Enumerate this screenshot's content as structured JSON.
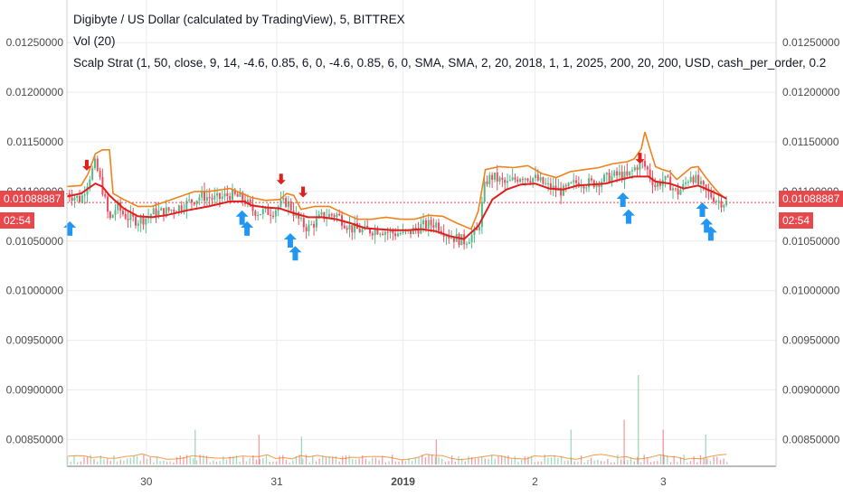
{
  "legend": {
    "title": "Digibyte / US Dollar (calculated by TradingView), 5, BITTREX",
    "vol": "Vol (20)",
    "strategy": "Scalp Strat (1, 50, close, 9, 14, -4.6, 0.85, 6, 0, -4.6, 0.85, 6, 0, SMA, SMA, 2, 20, 2018, 1, 1, 2025, 200, 20, 200, USD, cash_per_order, 0.2"
  },
  "last_price": {
    "value": "0.01088887",
    "countdown": "02:54",
    "color": "#e8474b"
  },
  "colors": {
    "up": "#53b987",
    "down": "#eb4d5c",
    "orange_line": "#f0821e",
    "red_line": "#e01e1e",
    "buy_arrow": "#2196f3",
    "sell_arrow": "#e01e1e",
    "grid": "#ececec"
  },
  "chart_data": {
    "type": "candlestick",
    "title": "Digibyte / US Dollar (calculated by TradingView), 5, BITTREX",
    "xlabel": "",
    "ylabel": "",
    "ylim": [
      0.00823,
      0.01293
    ],
    "yticks": [
      0.0125,
      0.012,
      0.0115,
      0.011,
      0.0105,
      0.01,
      0.0095,
      0.009,
      0.0085
    ],
    "ytick_labels": [
      "0.01250000",
      "0.01200000",
      "0.01150000",
      "0.01100000",
      "0.01050000",
      "0.01000000",
      "0.00950000",
      "0.00900000",
      "0.00850000"
    ],
    "xticks": [
      {
        "label": "30",
        "pos": 0.112,
        "bold": false
      },
      {
        "label": "31",
        "pos": 0.296,
        "bold": false
      },
      {
        "label": "2019",
        "pos": 0.474,
        "bold": true
      },
      {
        "label": "2",
        "pos": 0.66,
        "bold": false
      },
      {
        "label": "3",
        "pos": 0.841,
        "bold": false
      }
    ],
    "grid": true,
    "price_path": [
      [
        0.0,
        0.01098
      ],
      [
        0.01,
        0.01095
      ],
      [
        0.02,
        0.01092
      ],
      [
        0.03,
        0.01112
      ],
      [
        0.04,
        0.01128
      ],
      [
        0.05,
        0.01103
      ],
      [
        0.06,
        0.0107
      ],
      [
        0.07,
        0.01085
      ],
      [
        0.08,
        0.01077
      ],
      [
        0.09,
        0.01072
      ],
      [
        0.1,
        0.01071
      ],
      [
        0.11,
        0.01073
      ],
      [
        0.12,
        0.01078
      ],
      [
        0.14,
        0.0108
      ],
      [
        0.16,
        0.01085
      ],
      [
        0.18,
        0.01092
      ],
      [
        0.19,
        0.01096
      ],
      [
        0.21,
        0.01092
      ],
      [
        0.23,
        0.01097
      ],
      [
        0.25,
        0.01092
      ],
      [
        0.26,
        0.01082
      ],
      [
        0.27,
        0.01079
      ],
      [
        0.29,
        0.0108
      ],
      [
        0.3,
        0.01086
      ],
      [
        0.31,
        0.0109
      ],
      [
        0.32,
        0.01079
      ],
      [
        0.33,
        0.01068
      ],
      [
        0.34,
        0.01063
      ],
      [
        0.36,
        0.01075
      ],
      [
        0.38,
        0.01077
      ],
      [
        0.4,
        0.01063
      ],
      [
        0.42,
        0.0106
      ],
      [
        0.44,
        0.01062
      ],
      [
        0.46,
        0.01058
      ],
      [
        0.48,
        0.01058
      ],
      [
        0.5,
        0.01065
      ],
      [
        0.52,
        0.01068
      ],
      [
        0.54,
        0.01055
      ],
      [
        0.56,
        0.0105
      ],
      [
        0.58,
        0.0106
      ],
      [
        0.59,
        0.0111
      ],
      [
        0.6,
        0.01115
      ],
      [
        0.62,
        0.01107
      ],
      [
        0.64,
        0.01116
      ],
      [
        0.66,
        0.01113
      ],
      [
        0.68,
        0.01104
      ],
      [
        0.7,
        0.011
      ],
      [
        0.72,
        0.0111
      ],
      [
        0.74,
        0.01108
      ],
      [
        0.76,
        0.01113
      ],
      [
        0.78,
        0.01117
      ],
      [
        0.79,
        0.01114
      ],
      [
        0.8,
        0.01123
      ],
      [
        0.81,
        0.0113
      ],
      [
        0.82,
        0.0112
      ],
      [
        0.83,
        0.01105
      ],
      [
        0.84,
        0.01112
      ],
      [
        0.85,
        0.01108
      ],
      [
        0.86,
        0.01098
      ],
      [
        0.87,
        0.01105
      ],
      [
        0.88,
        0.01118
      ],
      [
        0.89,
        0.01108
      ],
      [
        0.9,
        0.011
      ],
      [
        0.91,
        0.01095
      ],
      [
        0.92,
        0.0109
      ],
      [
        0.93,
        0.01089
      ]
    ],
    "red_line": [
      [
        0.0,
        0.01095
      ],
      [
        0.02,
        0.01098
      ],
      [
        0.04,
        0.01108
      ],
      [
        0.05,
        0.01105
      ],
      [
        0.06,
        0.01096
      ],
      [
        0.08,
        0.01083
      ],
      [
        0.1,
        0.01075
      ],
      [
        0.12,
        0.01074
      ],
      [
        0.14,
        0.01076
      ],
      [
        0.17,
        0.01081
      ],
      [
        0.2,
        0.01085
      ],
      [
        0.23,
        0.0109
      ],
      [
        0.25,
        0.0109
      ],
      [
        0.26,
        0.01086
      ],
      [
        0.28,
        0.01084
      ],
      [
        0.3,
        0.01083
      ],
      [
        0.32,
        0.01078
      ],
      [
        0.34,
        0.01074
      ],
      [
        0.36,
        0.01074
      ],
      [
        0.38,
        0.01072
      ],
      [
        0.4,
        0.01068
      ],
      [
        0.42,
        0.01063
      ],
      [
        0.44,
        0.01062
      ],
      [
        0.46,
        0.01061
      ],
      [
        0.48,
        0.01061
      ],
      [
        0.5,
        0.01062
      ],
      [
        0.52,
        0.0106
      ],
      [
        0.54,
        0.01055
      ],
      [
        0.56,
        0.01052
      ],
      [
        0.58,
        0.01065
      ],
      [
        0.6,
        0.01092
      ],
      [
        0.62,
        0.01102
      ],
      [
        0.64,
        0.01107
      ],
      [
        0.66,
        0.01108
      ],
      [
        0.68,
        0.01103
      ],
      [
        0.7,
        0.01102
      ],
      [
        0.72,
        0.01106
      ],
      [
        0.74,
        0.01107
      ],
      [
        0.76,
        0.01108
      ],
      [
        0.78,
        0.01112
      ],
      [
        0.8,
        0.01115
      ],
      [
        0.82,
        0.01115
      ],
      [
        0.83,
        0.0111
      ],
      [
        0.85,
        0.01108
      ],
      [
        0.87,
        0.01103
      ],
      [
        0.89,
        0.01106
      ],
      [
        0.91,
        0.011
      ],
      [
        0.93,
        0.01093
      ]
    ],
    "orange_line": [
      [
        0.0,
        0.01105
      ],
      [
        0.02,
        0.01106
      ],
      [
        0.03,
        0.01118
      ],
      [
        0.04,
        0.01138
      ],
      [
        0.05,
        0.01142
      ],
      [
        0.06,
        0.01142
      ],
      [
        0.065,
        0.01098
      ],
      [
        0.08,
        0.01092
      ],
      [
        0.1,
        0.01085
      ],
      [
        0.12,
        0.01085
      ],
      [
        0.14,
        0.0109
      ],
      [
        0.16,
        0.01095
      ],
      [
        0.18,
        0.011
      ],
      [
        0.2,
        0.011
      ],
      [
        0.23,
        0.01103
      ],
      [
        0.24,
        0.011
      ],
      [
        0.26,
        0.01094
      ],
      [
        0.28,
        0.01091
      ],
      [
        0.3,
        0.01092
      ],
      [
        0.31,
        0.01098
      ],
      [
        0.32,
        0.01096
      ],
      [
        0.33,
        0.01082
      ],
      [
        0.35,
        0.01085
      ],
      [
        0.37,
        0.01085
      ],
      [
        0.39,
        0.01078
      ],
      [
        0.41,
        0.01072
      ],
      [
        0.43,
        0.01072
      ],
      [
        0.45,
        0.01074
      ],
      [
        0.47,
        0.01072
      ],
      [
        0.49,
        0.01072
      ],
      [
        0.51,
        0.01076
      ],
      [
        0.53,
        0.01075
      ],
      [
        0.55,
        0.01068
      ],
      [
        0.57,
        0.01062
      ],
      [
        0.58,
        0.0108
      ],
      [
        0.59,
        0.01122
      ],
      [
        0.61,
        0.01125
      ],
      [
        0.63,
        0.01124
      ],
      [
        0.65,
        0.01126
      ],
      [
        0.67,
        0.01118
      ],
      [
        0.69,
        0.01114
      ],
      [
        0.71,
        0.0112
      ],
      [
        0.73,
        0.01122
      ],
      [
        0.75,
        0.01124
      ],
      [
        0.77,
        0.01128
      ],
      [
        0.79,
        0.0113
      ],
      [
        0.8,
        0.01133
      ],
      [
        0.81,
        0.01143
      ],
      [
        0.815,
        0.0116
      ],
      [
        0.82,
        0.01148
      ],
      [
        0.83,
        0.01125
      ],
      [
        0.84,
        0.01122
      ],
      [
        0.85,
        0.0112
      ],
      [
        0.86,
        0.01112
      ],
      [
        0.87,
        0.01118
      ],
      [
        0.88,
        0.01124
      ],
      [
        0.89,
        0.01125
      ],
      [
        0.9,
        0.01115
      ],
      [
        0.91,
        0.01106
      ],
      [
        0.92,
        0.01098
      ],
      [
        0.93,
        0.01092
      ]
    ],
    "sell_signals": [
      {
        "pos": 0.028,
        "price": 0.01121
      },
      {
        "pos": 0.302,
        "price": 0.01107
      },
      {
        "pos": 0.333,
        "price": 0.01094
      },
      {
        "pos": 0.808,
        "price": 0.01128
      }
    ],
    "buy_signals": [
      {
        "pos": 0.004,
        "price": 0.0107
      },
      {
        "pos": 0.247,
        "price": 0.01081
      },
      {
        "pos": 0.254,
        "price": 0.0107
      },
      {
        "pos": 0.315,
        "price": 0.01058
      },
      {
        "pos": 0.322,
        "price": 0.01045
      },
      {
        "pos": 0.784,
        "price": 0.01099
      },
      {
        "pos": 0.792,
        "price": 0.01082
      },
      {
        "pos": 0.896,
        "price": 0.01089
      },
      {
        "pos": 0.902,
        "price": 0.01073
      },
      {
        "pos": 0.908,
        "price": 0.01065
      }
    ],
    "volume_spikes": [
      {
        "pos": 0.18,
        "level": 0.35
      },
      {
        "pos": 0.27,
        "level": 0.3
      },
      {
        "pos": 0.33,
        "level": 0.28
      },
      {
        "pos": 0.52,
        "level": 0.25
      },
      {
        "pos": 0.71,
        "level": 0.35
      },
      {
        "pos": 0.785,
        "level": 0.45
      },
      {
        "pos": 0.805,
        "level": 0.9
      },
      {
        "pos": 0.84,
        "level": 0.35
      },
      {
        "pos": 0.9,
        "level": 0.3
      }
    ]
  }
}
